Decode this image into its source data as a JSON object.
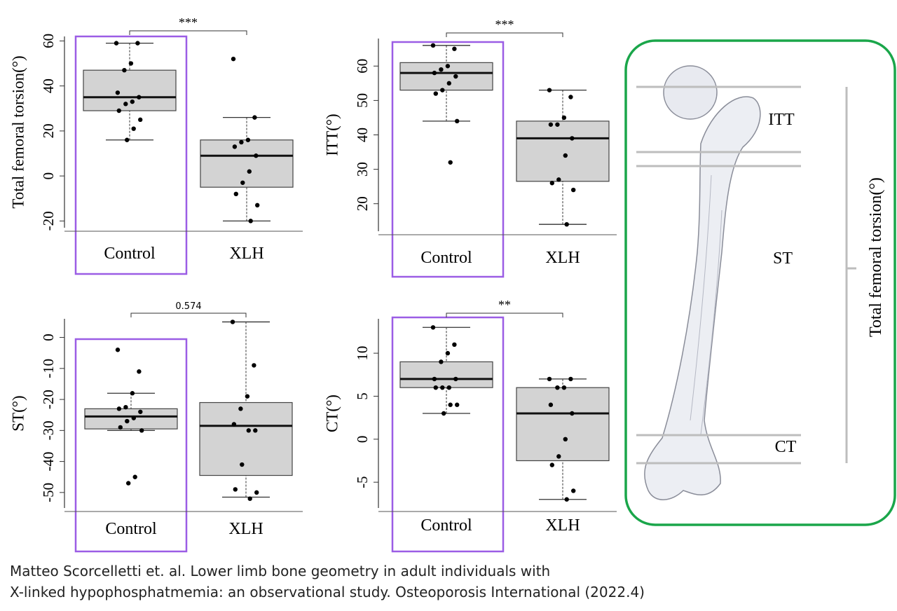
{
  "chart_data": [
    {
      "type": "box",
      "y_label": "Total femoral torsion(°)",
      "annotation": "***",
      "categories": [
        "Control",
        "XLH"
      ],
      "ylim": [
        -23,
        62
      ],
      "yticks": [
        -20,
        0,
        20,
        40,
        60
      ],
      "boxes": [
        {
          "min": 16,
          "q1": 29,
          "median": 35,
          "q3": 47,
          "max": 59,
          "points": [
            59,
            59,
            50,
            47,
            37,
            35,
            33,
            32,
            29,
            25,
            21,
            16
          ]
        },
        {
          "min": -20,
          "q1": -5,
          "median": 9,
          "q3": 16,
          "max": 26,
          "points": [
            52,
            26,
            16,
            15,
            13,
            9,
            2,
            -3,
            -8,
            -13,
            -20
          ]
        }
      ]
    },
    {
      "type": "box",
      "y_label": "ITT(°)",
      "annotation": "***",
      "categories": [
        "Control",
        "XLH"
      ],
      "ylim": [
        12,
        68
      ],
      "yticks": [
        20,
        30,
        40,
        50,
        60
      ],
      "boxes": [
        {
          "min": 44,
          "q1": 53,
          "median": 58,
          "q3": 61,
          "max": 66,
          "points": [
            66,
            65,
            60,
            59,
            58,
            57,
            55,
            53,
            52,
            44,
            32
          ]
        },
        {
          "min": 14,
          "q1": 26.5,
          "median": 39,
          "q3": 44,
          "max": 53,
          "points": [
            53,
            51,
            45,
            43,
            43,
            39,
            34,
            27,
            26,
            24,
            14
          ]
        }
      ]
    },
    {
      "type": "box",
      "y_label": "ST(°)",
      "annotation": "0.574",
      "categories": [
        "Control",
        "XLH"
      ],
      "ylim": [
        -55,
        6
      ],
      "yticks": [
        -50,
        -40,
        -30,
        -20,
        -10,
        0
      ],
      "boxes": [
        {
          "min": -30,
          "q1": -29.5,
          "median": -25.5,
          "q3": -23,
          "max": -18,
          "points": [
            -4,
            -11,
            -18,
            -22.5,
            -23,
            -24,
            -26,
            -27,
            -29,
            -30,
            -45,
            -47
          ]
        },
        {
          "min": -51.5,
          "q1": -44.5,
          "median": -28.5,
          "q3": -21,
          "max": 5,
          "points": [
            5,
            -9,
            -19,
            -23,
            -28,
            -30,
            -30,
            -41,
            -49,
            -50,
            -52
          ]
        }
      ]
    },
    {
      "type": "box",
      "y_label": "CT(°)",
      "annotation": "**",
      "categories": [
        "Control",
        "XLH"
      ],
      "ylim": [
        -8,
        14
      ],
      "yticks": [
        -5,
        0,
        5,
        10
      ],
      "boxes": [
        {
          "min": 3,
          "q1": 6,
          "median": 7,
          "q3": 9,
          "max": 13,
          "points": [
            13,
            11,
            10,
            9,
            7,
            7,
            6,
            6,
            6,
            4,
            4,
            3
          ]
        },
        {
          "min": -7,
          "q1": -2.5,
          "median": 3,
          "q3": 6,
          "max": 7,
          "points": [
            7,
            7,
            6,
            6,
            4,
            3,
            0,
            -2,
            -3,
            -6,
            -7
          ]
        }
      ]
    }
  ],
  "femur": {
    "labels": [
      "ITT",
      "ST",
      "CT"
    ],
    "side_label": "Total femoral torsion(°)"
  },
  "caption": [
    "Matteo Scorcelletti et. al. Lower limb bone geometry in adult individuals with",
    "X-linked hypophosphatmemia: an observational study. Osteoporosis International (2022.4)"
  ]
}
